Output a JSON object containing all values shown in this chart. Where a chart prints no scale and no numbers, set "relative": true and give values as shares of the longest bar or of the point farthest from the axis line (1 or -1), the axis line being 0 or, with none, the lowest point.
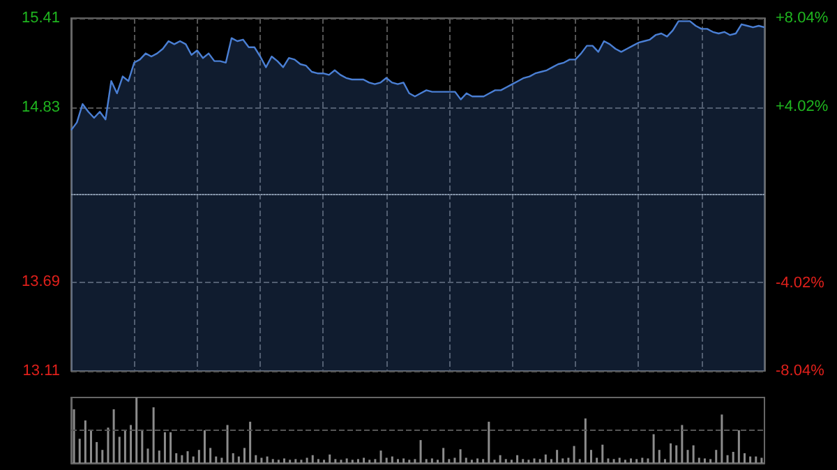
{
  "chart_data": [
    {
      "type": "area",
      "categories": [
        null,
        null,
        null,
        null,
        null,
        null,
        null,
        null,
        null,
        null,
        null,
        null,
        null,
        null,
        null,
        null,
        null,
        null,
        null,
        null,
        null,
        null,
        null,
        null,
        null,
        null,
        null,
        null,
        null,
        null,
        null,
        null,
        null,
        null,
        null,
        null,
        null,
        null,
        null,
        null,
        null,
        null,
        null,
        null,
        null,
        null,
        null,
        null,
        null,
        null,
        null,
        null,
        null,
        null,
        null,
        null,
        null,
        null,
        null,
        null,
        null,
        null,
        null,
        null,
        null,
        null,
        null,
        null,
        null,
        null,
        null,
        null,
        null,
        null,
        null,
        null,
        null,
        null,
        null,
        null,
        null,
        null,
        null,
        null,
        null,
        null,
        null,
        null,
        null,
        null,
        null,
        null,
        null,
        null,
        null,
        null,
        null,
        null,
        null,
        null,
        null,
        null,
        null,
        null,
        null,
        null,
        null,
        null,
        null,
        null,
        null,
        null,
        null,
        null,
        null,
        null,
        null,
        null,
        null,
        null,
        null,
        null
      ],
      "series": [
        {
          "color": "#4a7fd4",
          "values": [
            14.68,
            14.73,
            14.85,
            14.8,
            14.76,
            14.8,
            14.75,
            15.0,
            14.92,
            15.03,
            15.0,
            15.12,
            15.14,
            15.18,
            15.16,
            15.18,
            15.21,
            15.26,
            15.24,
            15.26,
            15.24,
            15.17,
            15.2,
            15.15,
            15.18,
            15.13,
            15.13,
            15.12,
            15.28,
            15.26,
            15.27,
            15.22,
            15.22,
            15.16,
            15.09,
            15.16,
            15.13,
            15.09,
            15.15,
            15.14,
            15.11,
            15.1,
            15.06,
            15.05,
            15.05,
            15.04,
            15.07,
            15.04,
            15.02,
            15.01,
            15.01,
            15.01,
            14.99,
            14.98,
            14.99,
            15.02,
            14.99,
            14.98,
            14.99,
            14.92,
            14.9,
            14.92,
            14.94,
            14.93,
            14.93,
            14.93,
            14.93,
            14.93,
            14.88,
            14.92,
            14.9,
            14.9,
            14.9,
            14.92,
            14.94,
            14.94,
            14.96,
            14.98,
            15.0,
            15.02,
            15.03,
            15.05,
            15.06,
            15.07,
            15.09,
            15.11,
            15.12,
            15.14,
            15.14,
            15.18,
            15.23,
            15.23,
            15.19,
            15.26,
            15.24,
            15.21,
            15.19,
            15.21,
            15.23,
            15.25,
            15.26,
            15.27,
            15.3,
            15.31,
            15.29,
            15.33,
            15.39,
            15.39,
            15.39,
            15.36,
            15.34,
            15.34,
            15.32,
            15.31,
            15.32,
            15.3,
            15.31,
            15.37,
            15.36,
            15.35,
            15.36,
            15.35
          ]
        }
      ],
      "ylim": [
        13.11,
        15.41
      ],
      "yticks": [
        13.11,
        13.69,
        14.83,
        15.41
      ],
      "y2lim": [
        -8.04,
        8.04
      ],
      "y2ticks": [
        {
          "value": -8.04,
          "label": "-8.04%"
        },
        {
          "value": -4.02,
          "label": "-4.02%"
        },
        {
          "value": 4.02,
          "label": "+4.02%"
        },
        {
          "value": 8.04,
          "label": "+8.04%"
        }
      ],
      "ref_lines": [
        {
          "axis": "y",
          "value": 14.26,
          "color": "#8a9bb0",
          "line_style": "dotted"
        }
      ],
      "grid": true,
      "tick_labels": "y"
    },
    {
      "type": "bar",
      "relative": true,
      "categories": [
        null,
        null,
        null,
        null,
        null,
        null,
        null,
        null,
        null,
        null,
        null,
        null,
        null,
        null,
        null,
        null,
        null,
        null,
        null,
        null,
        null,
        null,
        null,
        null,
        null,
        null,
        null,
        null,
        null,
        null,
        null,
        null,
        null,
        null,
        null,
        null,
        null,
        null,
        null,
        null,
        null,
        null,
        null,
        null,
        null,
        null,
        null,
        null,
        null,
        null,
        null,
        null,
        null,
        null,
        null,
        null,
        null,
        null,
        null,
        null,
        null,
        null,
        null,
        null,
        null,
        null,
        null,
        null,
        null,
        null,
        null,
        null,
        null,
        null,
        null,
        null,
        null,
        null,
        null,
        null,
        null,
        null,
        null,
        null,
        null,
        null,
        null,
        null,
        null,
        null,
        null,
        null,
        null,
        null,
        null,
        null,
        null,
        null,
        null,
        null,
        null,
        null,
        null,
        null,
        null,
        null,
        null,
        null,
        null,
        null,
        null,
        null,
        null,
        null,
        null,
        null,
        null,
        null,
        null,
        null,
        null,
        null
      ],
      "series": [
        {
          "color": "#8c8c8c",
          "values": [
            0.82,
            0.37,
            0.65,
            0.5,
            0.32,
            0.2,
            0.54,
            0.82,
            0.4,
            0.5,
            0.58,
            1.0,
            0.5,
            0.22,
            0.85,
            0.19,
            0.47,
            0.47,
            0.15,
            0.12,
            0.18,
            0.1,
            0.2,
            0.5,
            0.23,
            0.1,
            0.08,
            0.58,
            0.15,
            0.1,
            0.23,
            0.63,
            0.12,
            0.08,
            0.1,
            0.06,
            0.05,
            0.07,
            0.05,
            0.06,
            0.05,
            0.08,
            0.12,
            0.06,
            0.05,
            0.13,
            0.06,
            0.05,
            0.07,
            0.05,
            0.06,
            0.08,
            0.05,
            0.06,
            0.19,
            0.08,
            0.1,
            0.06,
            0.07,
            0.05,
            0.06,
            0.35,
            0.06,
            0.07,
            0.05,
            0.23,
            0.06,
            0.08,
            0.21,
            0.08,
            0.05,
            0.07,
            0.06,
            0.63,
            0.05,
            0.12,
            0.06,
            0.05,
            0.12,
            0.06,
            0.05,
            0.07,
            0.06,
            0.13,
            0.06,
            0.2,
            0.07,
            0.08,
            0.26,
            0.06,
            0.68,
            0.2,
            0.08,
            0.28,
            0.07,
            0.06,
            0.08,
            0.05,
            0.07,
            0.06,
            0.08,
            0.07,
            0.44,
            0.2,
            0.06,
            0.3,
            0.27,
            0.58,
            0.2,
            0.27,
            0.08,
            0.07,
            0.06,
            0.2,
            0.74,
            0.12,
            0.17,
            0.5,
            0.15,
            0.1,
            0.1,
            0.08
          ]
        }
      ],
      "ref_lines": [
        {
          "axis": "y",
          "value": 0.5,
          "color": "#555555",
          "line_style": "dashed"
        }
      ],
      "tick_labels": false
    }
  ]
}
